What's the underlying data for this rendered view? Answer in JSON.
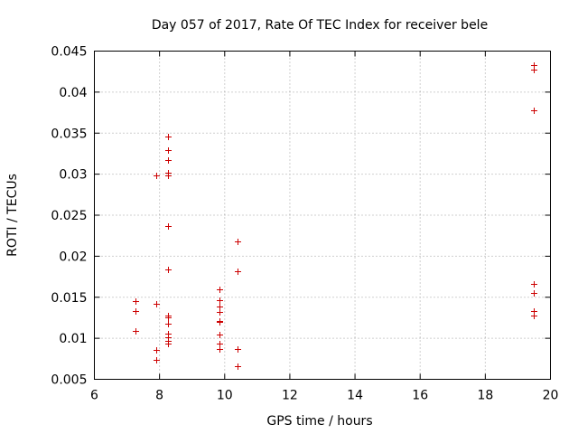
{
  "chart_data": {
    "type": "scatter",
    "title": "Day 057 of 2017, Rate Of TEC Index for receiver bele",
    "xlabel": "GPS time / hours",
    "ylabel": "ROTI / TECUs",
    "xlim": [
      6,
      20
    ],
    "ylim": [
      0.005,
      0.045
    ],
    "xticks": [
      6,
      8,
      10,
      12,
      14,
      16,
      18,
      20
    ],
    "xtick_labels": [
      "6",
      "8",
      "10",
      "12",
      "14",
      "16",
      "18",
      "20"
    ],
    "yticks": [
      0.005,
      0.01,
      0.015,
      0.02,
      0.025,
      0.03,
      0.035,
      0.04,
      0.045
    ],
    "ytick_labels": [
      "0.005",
      "0.01",
      "0.015",
      "0.02",
      "0.025",
      "0.03",
      "0.035",
      "0.04",
      "0.045"
    ],
    "grid": true,
    "marker": "+",
    "color": "#cc0000",
    "series": [
      {
        "name": "ROTI",
        "points": [
          [
            7.25,
            0.0145
          ],
          [
            7.25,
            0.0133
          ],
          [
            7.25,
            0.0109
          ],
          [
            7.9,
            0.0299
          ],
          [
            7.9,
            0.0142
          ],
          [
            7.9,
            0.0086
          ],
          [
            7.9,
            0.0074
          ],
          [
            8.25,
            0.0346
          ],
          [
            8.25,
            0.0329
          ],
          [
            8.25,
            0.0317
          ],
          [
            8.25,
            0.0302
          ],
          [
            8.25,
            0.0298
          ],
          [
            8.25,
            0.0237
          ],
          [
            8.25,
            0.0184
          ],
          [
            8.25,
            0.0128
          ],
          [
            8.25,
            0.0125
          ],
          [
            8.25,
            0.0118
          ],
          [
            8.25,
            0.0106
          ],
          [
            8.25,
            0.0101
          ],
          [
            8.25,
            0.0097
          ],
          [
            8.25,
            0.0094
          ],
          [
            9.85,
            0.016
          ],
          [
            9.85,
            0.0146
          ],
          [
            9.85,
            0.0139
          ],
          [
            9.85,
            0.0132
          ],
          [
            9.85,
            0.0121
          ],
          [
            9.85,
            0.012
          ],
          [
            9.85,
            0.0105
          ],
          [
            9.85,
            0.0094
          ],
          [
            9.85,
            0.0087
          ],
          [
            10.4,
            0.0218
          ],
          [
            10.4,
            0.0182
          ],
          [
            10.4,
            0.0087
          ],
          [
            10.4,
            0.0066
          ],
          [
            19.5,
            0.0433
          ],
          [
            19.5,
            0.0427
          ],
          [
            19.5,
            0.0378
          ],
          [
            19.5,
            0.0166
          ],
          [
            19.5,
            0.0155
          ],
          [
            19.5,
            0.0133
          ],
          [
            19.5,
            0.0128
          ]
        ]
      }
    ]
  }
}
